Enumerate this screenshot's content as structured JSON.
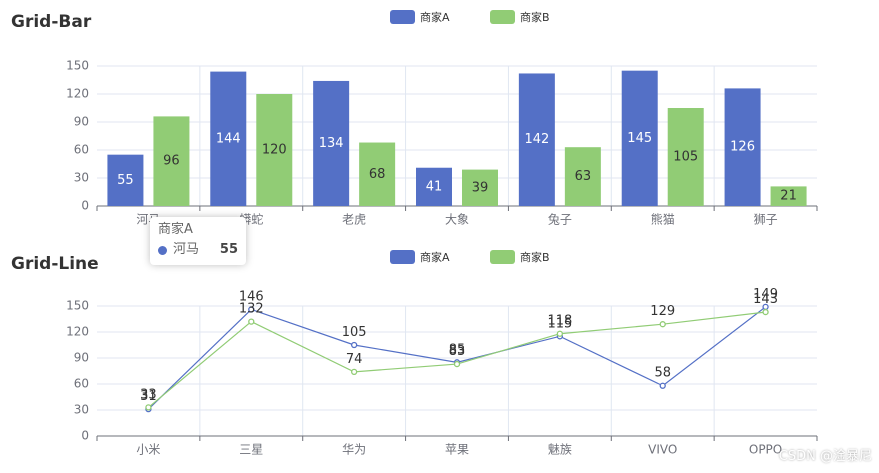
{
  "colors": {
    "seriesA": "#5470c6",
    "seriesB": "#91cc75"
  },
  "watermark": "CSDN @淦暴尼",
  "tooltip": {
    "title": "商家A",
    "name": "河马",
    "value": "55"
  },
  "chart_data": [
    {
      "type": "bar",
      "title": "Grid-Bar",
      "legend_position": "top-center",
      "categories": [
        "河马",
        "蟒蛇",
        "老虎",
        "大象",
        "兔子",
        "熊猫",
        "狮子"
      ],
      "series": [
        {
          "name": "商家A",
          "values": [
            55,
            144,
            134,
            41,
            142,
            145,
            126
          ]
        },
        {
          "name": "商家B",
          "values": [
            96,
            120,
            68,
            39,
            63,
            105,
            21
          ]
        }
      ],
      "ylim": [
        0,
        150
      ],
      "yticks": [
        0,
        30,
        60,
        90,
        120,
        150
      ],
      "grid": true
    },
    {
      "type": "line",
      "title": "Grid-Line",
      "legend_position": "top-center",
      "categories": [
        "小米",
        "三星",
        "华为",
        "苹果",
        "魅族",
        "VIVO",
        "OPPO"
      ],
      "series": [
        {
          "name": "商家A",
          "values": [
            31,
            146,
            105,
            85,
            115,
            58,
            149
          ]
        },
        {
          "name": "商家B",
          "values": [
            33,
            132,
            74,
            83,
            118,
            129,
            143
          ]
        }
      ],
      "ylim": [
        0,
        150
      ],
      "yticks": [
        0,
        30,
        60,
        90,
        120,
        150
      ],
      "grid": true
    }
  ]
}
